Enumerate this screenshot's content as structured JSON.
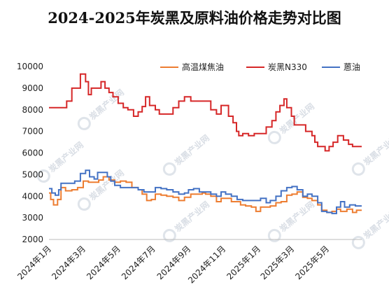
{
  "chart_data": {
    "type": "line",
    "title": "2024-2025年炭黑及原料油价格走势对比图",
    "xlabel": "",
    "ylabel": "",
    "ylim": [
      2000,
      10000
    ],
    "yticks": [
      2000,
      3000,
      4000,
      5000,
      6000,
      7000,
      8000,
      9000,
      10000
    ],
    "xlim": [
      "2024-01-01",
      "2025-07-01"
    ],
    "xtick_labels": [
      {
        "date": "2024-01-01",
        "label": "2024年1月"
      },
      {
        "date": "2024-03-01",
        "label": "2024年3月"
      },
      {
        "date": "2024-05-01",
        "label": "2024年5月"
      },
      {
        "date": "2024-07-01",
        "label": "2024年7月"
      },
      {
        "date": "2024-09-01",
        "label": "2024年9月"
      },
      {
        "date": "2024-11-01",
        "label": "2024年11月"
      },
      {
        "date": "2025-01-01",
        "label": "2025年1月"
      },
      {
        "date": "2025-03-01",
        "label": "2025年3月"
      },
      {
        "date": "2025-05-01",
        "label": "2025年5月"
      }
    ],
    "grid": false,
    "legend": "top-right",
    "series": [
      {
        "name": "高温煤焦油",
        "color": "#ed7d31",
        "points": [
          [
            "2024-01-01",
            4150
          ],
          [
            "2024-01-04",
            3850
          ],
          [
            "2024-01-09",
            3600
          ],
          [
            "2024-01-16",
            3850
          ],
          [
            "2024-01-22",
            4400
          ],
          [
            "2024-01-30",
            4250
          ],
          [
            "2024-02-10",
            4300
          ],
          [
            "2024-02-20",
            4400
          ],
          [
            "2024-03-01",
            4700
          ],
          [
            "2024-03-10",
            4650
          ],
          [
            "2024-03-20",
            4650
          ],
          [
            "2024-03-28",
            4750
          ],
          [
            "2024-04-05",
            4900
          ],
          [
            "2024-04-15",
            4750
          ],
          [
            "2024-04-25",
            4650
          ],
          [
            "2024-05-05",
            4700
          ],
          [
            "2024-05-15",
            4650
          ],
          [
            "2024-05-25",
            4400
          ],
          [
            "2024-06-05",
            4300
          ],
          [
            "2024-06-12",
            4100
          ],
          [
            "2024-06-20",
            3800
          ],
          [
            "2024-06-28",
            3850
          ],
          [
            "2024-07-05",
            4100
          ],
          [
            "2024-07-15",
            4050
          ],
          [
            "2024-07-25",
            4000
          ],
          [
            "2024-08-05",
            3950
          ],
          [
            "2024-08-15",
            3800
          ],
          [
            "2024-08-25",
            3950
          ],
          [
            "2024-09-05",
            4100
          ],
          [
            "2024-09-15",
            4100
          ],
          [
            "2024-09-25",
            4150
          ],
          [
            "2024-10-01",
            4100
          ],
          [
            "2024-10-10",
            4000
          ],
          [
            "2024-10-20",
            3750
          ],
          [
            "2024-10-28",
            3900
          ],
          [
            "2024-11-05",
            3900
          ],
          [
            "2024-11-15",
            3750
          ],
          [
            "2024-11-25",
            3750
          ],
          [
            "2024-12-01",
            3600
          ],
          [
            "2024-12-10",
            3550
          ],
          [
            "2024-12-20",
            3500
          ],
          [
            "2024-12-28",
            3300
          ],
          [
            "2025-01-05",
            3500
          ],
          [
            "2025-01-15",
            3500
          ],
          [
            "2025-01-22",
            3550
          ],
          [
            "2025-02-01",
            3700
          ],
          [
            "2025-02-10",
            3750
          ],
          [
            "2025-02-20",
            4050
          ],
          [
            "2025-03-01",
            4100
          ],
          [
            "2025-03-10",
            4200
          ],
          [
            "2025-03-20",
            3950
          ],
          [
            "2025-03-28",
            3900
          ],
          [
            "2025-04-05",
            3800
          ],
          [
            "2025-04-15",
            3600
          ],
          [
            "2025-04-22",
            3350
          ],
          [
            "2025-05-01",
            3250
          ],
          [
            "2025-05-10",
            3300
          ],
          [
            "2025-05-18",
            3400
          ],
          [
            "2025-05-25",
            3300
          ],
          [
            "2025-06-05",
            3400
          ],
          [
            "2025-06-15",
            3250
          ],
          [
            "2025-06-22",
            3350
          ],
          [
            "2025-07-01",
            3350
          ]
        ]
      },
      {
        "name": "炭黑N330",
        "color": "#d62728",
        "points": [
          [
            "2024-01-01",
            8100
          ],
          [
            "2024-01-22",
            8100
          ],
          [
            "2024-02-01",
            8400
          ],
          [
            "2024-02-10",
            9000
          ],
          [
            "2024-02-18",
            9000
          ],
          [
            "2024-02-25",
            9650
          ],
          [
            "2024-03-05",
            9300
          ],
          [
            "2024-03-10",
            8700
          ],
          [
            "2024-03-15",
            9000
          ],
          [
            "2024-03-25",
            9000
          ],
          [
            "2024-04-01",
            9300
          ],
          [
            "2024-04-08",
            9000
          ],
          [
            "2024-04-15",
            8800
          ],
          [
            "2024-04-22",
            8600
          ],
          [
            "2024-05-01",
            8300
          ],
          [
            "2024-05-10",
            8100
          ],
          [
            "2024-05-18",
            8000
          ],
          [
            "2024-05-28",
            7700
          ],
          [
            "2024-06-05",
            7900
          ],
          [
            "2024-06-12",
            8150
          ],
          [
            "2024-06-18",
            8600
          ],
          [
            "2024-06-25",
            8200
          ],
          [
            "2024-07-05",
            8000
          ],
          [
            "2024-07-12",
            7800
          ],
          [
            "2024-07-25",
            7800
          ],
          [
            "2024-08-05",
            8100
          ],
          [
            "2024-08-15",
            8400
          ],
          [
            "2024-08-25",
            8600
          ],
          [
            "2024-09-05",
            8400
          ],
          [
            "2024-09-15",
            8400
          ],
          [
            "2024-09-25",
            8400
          ],
          [
            "2024-10-05",
            8400
          ],
          [
            "2024-10-10",
            8000
          ],
          [
            "2024-10-20",
            7800
          ],
          [
            "2024-10-28",
            8200
          ],
          [
            "2024-11-05",
            8200
          ],
          [
            "2024-11-10",
            7700
          ],
          [
            "2024-11-18",
            7400
          ],
          [
            "2024-11-24",
            7000
          ],
          [
            "2024-11-28",
            6800
          ],
          [
            "2024-12-05",
            6900
          ],
          [
            "2024-12-15",
            6800
          ],
          [
            "2024-12-25",
            6900
          ],
          [
            "2025-01-05",
            6900
          ],
          [
            "2025-01-15",
            7200
          ],
          [
            "2025-01-25",
            7500
          ],
          [
            "2025-02-01",
            7900
          ],
          [
            "2025-02-08",
            8200
          ],
          [
            "2025-02-15",
            8500
          ],
          [
            "2025-02-20",
            8100
          ],
          [
            "2025-02-28",
            7700
          ],
          [
            "2025-03-05",
            7300
          ],
          [
            "2025-03-15",
            7300
          ],
          [
            "2025-03-25",
            7000
          ],
          [
            "2025-04-05",
            6800
          ],
          [
            "2025-04-10",
            6500
          ],
          [
            "2025-04-15",
            6300
          ],
          [
            "2025-04-22",
            6300
          ],
          [
            "2025-04-28",
            6100
          ],
          [
            "2025-05-05",
            6300
          ],
          [
            "2025-05-12",
            6500
          ],
          [
            "2025-05-20",
            6800
          ],
          [
            "2025-05-30",
            6600
          ],
          [
            "2025-06-08",
            6400
          ],
          [
            "2025-06-15",
            6300
          ],
          [
            "2025-06-22",
            6300
          ],
          [
            "2025-07-01",
            6300
          ]
        ]
      },
      {
        "name": "蒽油",
        "color": "#4472c4",
        "points": [
          [
            "2024-01-01",
            4350
          ],
          [
            "2024-01-06",
            4150
          ],
          [
            "2024-01-12",
            4050
          ],
          [
            "2024-01-18",
            4300
          ],
          [
            "2024-01-22",
            4600
          ],
          [
            "2024-02-05",
            4600
          ],
          [
            "2024-02-15",
            4700
          ],
          [
            "2024-02-25",
            5050
          ],
          [
            "2024-03-05",
            5200
          ],
          [
            "2024-03-12",
            4900
          ],
          [
            "2024-03-20",
            4800
          ],
          [
            "2024-03-26",
            5100
          ],
          [
            "2024-04-05",
            5100
          ],
          [
            "2024-04-12",
            4900
          ],
          [
            "2024-04-18",
            4700
          ],
          [
            "2024-04-25",
            4500
          ],
          [
            "2024-05-05",
            4400
          ],
          [
            "2024-05-20",
            4400
          ],
          [
            "2024-06-05",
            4300
          ],
          [
            "2024-06-15",
            4200
          ],
          [
            "2024-06-25",
            4200
          ],
          [
            "2024-07-05",
            4400
          ],
          [
            "2024-07-15",
            4350
          ],
          [
            "2024-07-25",
            4300
          ],
          [
            "2024-08-05",
            4200
          ],
          [
            "2024-08-15",
            4100
          ],
          [
            "2024-08-25",
            4150
          ],
          [
            "2024-09-01",
            4300
          ],
          [
            "2024-09-10",
            4350
          ],
          [
            "2024-09-20",
            4200
          ],
          [
            "2024-10-01",
            4200
          ],
          [
            "2024-10-10",
            4100
          ],
          [
            "2024-10-20",
            4000
          ],
          [
            "2024-10-28",
            4200
          ],
          [
            "2024-11-05",
            4100
          ],
          [
            "2024-11-15",
            4000
          ],
          [
            "2024-11-25",
            3850
          ],
          [
            "2024-12-05",
            3800
          ],
          [
            "2024-12-15",
            3800
          ],
          [
            "2024-12-25",
            3800
          ],
          [
            "2025-01-05",
            3900
          ],
          [
            "2025-01-15",
            3700
          ],
          [
            "2025-01-22",
            3800
          ],
          [
            "2025-02-01",
            4000
          ],
          [
            "2025-02-10",
            4250
          ],
          [
            "2025-02-20",
            4400
          ],
          [
            "2025-03-01",
            4450
          ],
          [
            "2025-03-10",
            4300
          ],
          [
            "2025-03-20",
            4000
          ],
          [
            "2025-03-28",
            4100
          ],
          [
            "2025-04-05",
            4000
          ],
          [
            "2025-04-15",
            3700
          ],
          [
            "2025-04-22",
            3300
          ],
          [
            "2025-05-01",
            3250
          ],
          [
            "2025-05-10",
            3200
          ],
          [
            "2025-05-18",
            3500
          ],
          [
            "2025-05-25",
            3750
          ],
          [
            "2025-06-01",
            3500
          ],
          [
            "2025-06-10",
            3600
          ],
          [
            "2025-06-20",
            3550
          ],
          [
            "2025-07-01",
            3550
          ]
        ]
      }
    ]
  },
  "watermark": {
    "text": "炭黑产业网"
  }
}
